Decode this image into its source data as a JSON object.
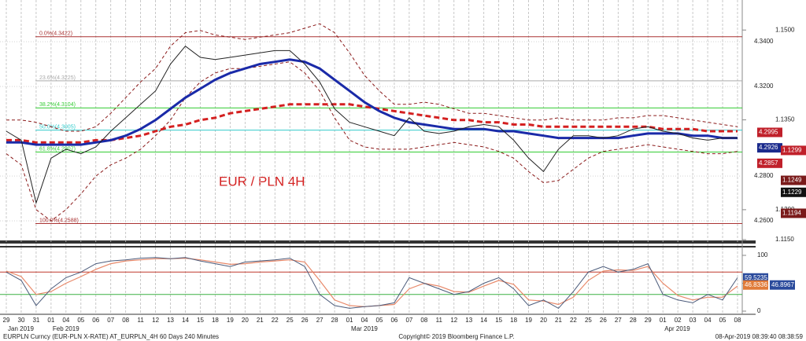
{
  "chart_data": [
    {
      "type": "line",
      "title": "EUR / PLN 4H",
      "categories": [
        "29",
        "30",
        "31",
        "01",
        "04",
        "05",
        "06",
        "07",
        "08",
        "11",
        "12",
        "13",
        "14",
        "15",
        "18",
        "19",
        "20",
        "21",
        "22",
        "25",
        "26",
        "27",
        "28",
        "01",
        "04",
        "05",
        "06",
        "07",
        "08",
        "11",
        "12",
        "13",
        "14",
        "15",
        "18",
        "19",
        "20",
        "21",
        "22",
        "25",
        "26",
        "27",
        "28",
        "29",
        "01",
        "02",
        "03",
        "04",
        "05",
        "08"
      ],
      "month_labels": [
        "Jan 2019",
        "Feb 2019",
        "Mar 2019",
        "Apr 2019"
      ],
      "grid": true,
      "ylim": [
        4.2516,
        4.3551
      ],
      "yticks": [
        {
          "value": 4.26,
          "label": "4.2600"
        },
        {
          "value": 4.28,
          "label": "4.2800"
        },
        {
          "value": 4.32,
          "label": "4.3200"
        },
        {
          "value": 4.34,
          "label": "4.3400"
        }
      ],
      "y2lim": [
        1.115,
        1.1537
      ],
      "y2ticks": [
        {
          "value": 1.115,
          "label": "1.1150"
        },
        {
          "value": 1.12,
          "label": "1.1200"
        },
        {
          "value": 1.135,
          "label": "1.1350"
        },
        {
          "value": 1.15,
          "label": "1.1500"
        }
      ],
      "fib_levels": [
        {
          "value": 4.3422,
          "label": "0.0%(4.3422)",
          "color": "#a33"
        },
        {
          "value": 4.3225,
          "label": "23.6%(4.3225)",
          "color": "#aaa"
        },
        {
          "value": 4.3104,
          "label": "38.2%(4.3104)",
          "color": "#3c3"
        },
        {
          "value": 4.3005,
          "label": "50.0%(4.3005)",
          "color": "#3cc"
        },
        {
          "value": 4.2907,
          "label": "61.8%(4.2907)",
          "color": "#3c3"
        },
        {
          "value": 4.2588,
          "label": "100.0%(4.2588)",
          "color": "#a33"
        }
      ],
      "price_labels": [
        {
          "value": 4.2995,
          "color": "#c0202a"
        },
        {
          "value": 4.2926,
          "color": "#1a2a8c"
        },
        {
          "value": 4.2857,
          "color": "#c0202a"
        }
      ],
      "price2_labels": [
        {
          "value": 1.1299,
          "color": "#c0202a",
          "axis": "y2"
        },
        {
          "value": 1.1249,
          "color": "#7a1a1a",
          "axis": "y2"
        },
        {
          "value": 1.1229,
          "color": "#111",
          "axis": "y2"
        },
        {
          "value": 1.1194,
          "color": "#7a1a1a",
          "axis": "y2"
        }
      ],
      "series": [
        {
          "color": "#8b1a1a",
          "dash": true,
          "width": 1,
          "values": [
            4.305,
            4.305,
            4.304,
            4.302,
            4.3,
            4.3,
            4.302,
            4.308,
            4.315,
            4.322,
            4.328,
            4.338,
            4.344,
            4.345,
            4.343,
            4.342,
            4.341,
            4.342,
            4.343,
            4.344,
            4.346,
            4.348,
            4.344,
            4.335,
            4.325,
            4.318,
            4.312,
            4.312,
            4.313,
            4.312,
            4.31,
            4.308,
            4.308,
            4.307,
            4.306,
            4.305,
            4.305,
            4.306,
            4.305,
            4.305,
            4.305,
            4.306,
            4.306,
            4.307,
            4.307,
            4.306,
            4.305,
            4.304,
            4.303,
            4.302
          ]
        },
        {
          "color": "#8b1a1a",
          "dash": true,
          "width": 1,
          "values": [
            4.29,
            4.285,
            4.265,
            4.26,
            4.265,
            4.272,
            4.28,
            4.285,
            4.288,
            4.292,
            4.298,
            4.305,
            4.315,
            4.322,
            4.326,
            4.328,
            4.328,
            4.329,
            4.33,
            4.331,
            4.326,
            4.318,
            4.306,
            4.296,
            4.293,
            4.292,
            4.292,
            4.292,
            4.293,
            4.294,
            4.295,
            4.294,
            4.293,
            4.291,
            4.288,
            4.282,
            4.277,
            4.278,
            4.283,
            4.288,
            4.291,
            4.292,
            4.293,
            4.294,
            4.293,
            4.292,
            4.291,
            4.29,
            4.29,
            4.291
          ]
        },
        {
          "color": "#d42020",
          "dash": true,
          "width": 3,
          "values": [
            4.296,
            4.296,
            4.295,
            4.295,
            4.295,
            4.295,
            4.296,
            4.296,
            4.297,
            4.298,
            4.3,
            4.302,
            4.303,
            4.305,
            4.306,
            4.308,
            4.309,
            4.31,
            4.311,
            4.312,
            4.312,
            4.312,
            4.312,
            4.312,
            4.311,
            4.31,
            4.309,
            4.308,
            4.307,
            4.306,
            4.305,
            4.305,
            4.304,
            4.304,
            4.303,
            4.303,
            4.302,
            4.302,
            4.302,
            4.302,
            4.302,
            4.302,
            4.302,
            4.302,
            4.301,
            4.301,
            4.301,
            4.3,
            4.3,
            4.3
          ]
        },
        {
          "color": "#1a2aa8",
          "dash": false,
          "width": 3,
          "values": [
            4.295,
            4.295,
            4.294,
            4.294,
            4.294,
            4.294,
            4.295,
            4.296,
            4.298,
            4.301,
            4.305,
            4.31,
            4.315,
            4.319,
            4.323,
            4.326,
            4.328,
            4.33,
            4.331,
            4.332,
            4.331,
            4.328,
            4.323,
            4.318,
            4.313,
            4.309,
            4.306,
            4.304,
            4.303,
            4.302,
            4.301,
            4.301,
            4.301,
            4.3,
            4.3,
            4.299,
            4.298,
            4.297,
            4.297,
            4.297,
            4.297,
            4.297,
            4.298,
            4.299,
            4.299,
            4.299,
            4.298,
            4.298,
            4.297,
            4.297
          ]
        },
        {
          "color": "#222",
          "dash": false,
          "width": 1,
          "values": [
            4.3,
            4.296,
            4.268,
            4.288,
            4.292,
            4.29,
            4.293,
            4.3,
            4.306,
            4.312,
            4.318,
            4.33,
            4.338,
            4.333,
            4.332,
            4.333,
            4.334,
            4.335,
            4.336,
            4.336,
            4.33,
            4.322,
            4.31,
            4.304,
            4.302,
            4.3,
            4.298,
            4.306,
            4.3,
            4.299,
            4.3,
            4.302,
            4.303,
            4.302,
            4.296,
            4.288,
            4.282,
            4.292,
            4.298,
            4.298,
            4.297,
            4.298,
            4.301,
            4.302,
            4.3,
            4.299,
            4.297,
            4.296,
            4.297,
            4.297
          ]
        }
      ]
    },
    {
      "type": "line",
      "ylim": [
        0,
        100
      ],
      "yticks": [
        0,
        50,
        100
      ],
      "levels": [
        {
          "value": 70,
          "color": "#c0392b"
        },
        {
          "value": 30,
          "color": "#3cb043"
        }
      ],
      "value_boxes": [
        {
          "value": 59.5235,
          "color": "#2a4a9c"
        },
        {
          "value": 46.8336,
          "color": "#e07b39"
        },
        {
          "value": 46.8967,
          "color": "#2a4a9c"
        }
      ],
      "series": [
        {
          "color": "#e8896a",
          "width": 1.2,
          "values": [
            72,
            62,
            30,
            35,
            50,
            62,
            75,
            85,
            90,
            92,
            94,
            94,
            95,
            92,
            88,
            84,
            85,
            88,
            90,
            92,
            88,
            55,
            20,
            10,
            8,
            10,
            12,
            40,
            50,
            45,
            35,
            34,
            45,
            55,
            48,
            20,
            18,
            12,
            25,
            55,
            72,
            74,
            73,
            80,
            50,
            28,
            20,
            25,
            25,
            45
          ]
        },
        {
          "color": "#4a5a7a",
          "width": 1,
          "values": [
            70,
            55,
            10,
            40,
            60,
            70,
            85,
            90,
            92,
            95,
            96,
            94,
            96,
            90,
            85,
            80,
            88,
            90,
            92,
            95,
            80,
            30,
            10,
            5,
            8,
            10,
            15,
            60,
            50,
            40,
            30,
            35,
            50,
            60,
            40,
            10,
            20,
            5,
            35,
            70,
            80,
            70,
            75,
            85,
            30,
            20,
            15,
            30,
            20,
            60
          ]
        }
      ]
    }
  ],
  "footer": {
    "left": "EURPLN Curncy (EUR-PLN X-RATE) AT_EURPLN_4H 60 Days 240 Minutes",
    "center": "Copyright© 2019 Bloomberg Finance L.P.",
    "right": "08-Apr-2019 08:39:40 08:38:59"
  }
}
